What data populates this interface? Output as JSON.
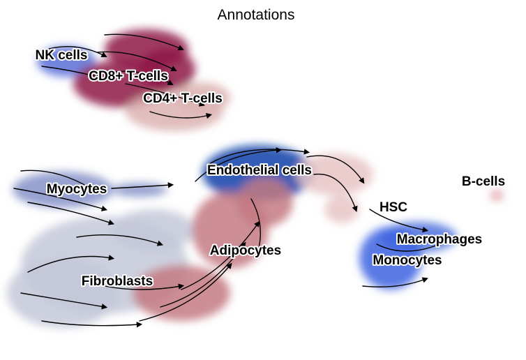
{
  "chart_data": {
    "type": "scatter",
    "title": "Annotations",
    "xlabel": "",
    "ylabel": "",
    "grid": false,
    "axes_visible": false,
    "legend": "on data",
    "overlay": "velocity streamlines",
    "series": [
      {
        "name": "NK cells",
        "color": "#5a6fd6"
      },
      {
        "name": "CD8+ T-cells",
        "color": "#8e1646"
      },
      {
        "name": "CD4+ T-cells",
        "color": "#dcb3b3"
      },
      {
        "name": "Endothelial cells",
        "color": "#0b3fa8"
      },
      {
        "name": "Myocytes",
        "color": "#8592c8"
      },
      {
        "name": "Fibroblasts",
        "color": "#c4c8d8"
      },
      {
        "name": "Adipocytes",
        "color": "#c47a82"
      },
      {
        "name": "HSC",
        "color": "#e8c4c6"
      },
      {
        "name": "Macrophages",
        "color": "#4f73dc"
      },
      {
        "name": "Monocytes",
        "color": "#3c63e0"
      },
      {
        "name": "B-cells",
        "color": "#e3a3ab"
      }
    ]
  }
}
